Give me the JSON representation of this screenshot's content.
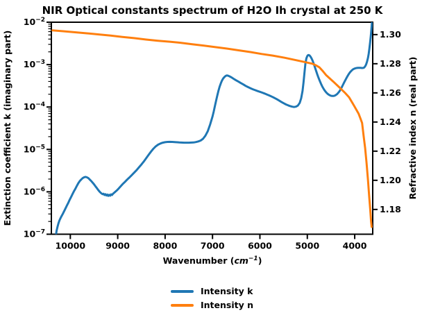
{
  "chart_data": {
    "type": "line",
    "title": "NIR Optical constants spectrum of H2O Ih crystal at 250 K",
    "xlabel": {
      "prefix": "Wavenumber (",
      "unit": "cm",
      "exponent": "−1",
      "suffix": ")"
    },
    "ylabel_left": "Extinction coefficient k (imaginary part)",
    "ylabel_right": "Refractive index n (real part)",
    "x_axis": {
      "lim": [
        10400,
        3620
      ],
      "reversed": true,
      "ticks": [
        10000,
        9000,
        8000,
        7000,
        6000,
        5000,
        4000
      ]
    },
    "y_axis_left": {
      "scale": "log",
      "lim": [
        1e-07,
        0.01
      ],
      "tick_exponents": [
        -2,
        -3,
        -4,
        -5,
        -6,
        -7
      ]
    },
    "y_axis_right": {
      "scale": "linear",
      "lim": [
        1.163,
        1.3085
      ],
      "ticks": [
        1.3,
        1.28,
        1.26,
        1.24,
        1.22,
        1.2,
        1.18
      ]
    },
    "grid": false,
    "legend": {
      "position": "below-center",
      "frame": false
    },
    "series": [
      {
        "name": "Intensity k",
        "axis": "left",
        "color": "#1f77b4",
        "points": [
          [
            10300,
            1e-07
          ],
          [
            10290,
            1.2e-07
          ],
          [
            10270,
            1.5e-07
          ],
          [
            10250,
            1.8e-07
          ],
          [
            10230,
            2.1e-07
          ],
          [
            10210,
            2.35e-07
          ],
          [
            10190,
            2.6e-07
          ],
          [
            10160,
            3e-07
          ],
          [
            10130,
            3.5e-07
          ],
          [
            10100,
            4.1e-07
          ],
          [
            10070,
            4.8e-07
          ],
          [
            10040,
            5.6e-07
          ],
          [
            10010,
            6.6e-07
          ],
          [
            9980,
            7.7e-07
          ],
          [
            9950,
            9e-07
          ],
          [
            9920,
            1.05e-06
          ],
          [
            9890,
            1.2e-06
          ],
          [
            9860,
            1.4e-06
          ],
          [
            9830,
            1.6e-06
          ],
          [
            9800,
            1.8e-06
          ],
          [
            9770,
            1.95e-06
          ],
          [
            9740,
            2.1e-06
          ],
          [
            9710,
            2.2e-06
          ],
          [
            9680,
            2.25e-06
          ],
          [
            9650,
            2.2e-06
          ],
          [
            9620,
            2.1e-06
          ],
          [
            9590,
            1.95e-06
          ],
          [
            9560,
            1.8e-06
          ],
          [
            9530,
            1.65e-06
          ],
          [
            9500,
            1.5e-06
          ],
          [
            9470,
            1.35e-06
          ],
          [
            9440,
            1.22e-06
          ],
          [
            9410,
            1.1e-06
          ],
          [
            9380,
            1e-06
          ],
          [
            9350,
            9.3e-07
          ],
          [
            9320,
            8.8e-07
          ],
          [
            9300,
            9e-07
          ],
          [
            9280,
            8.4e-07
          ],
          [
            9260,
            8.8e-07
          ],
          [
            9240,
            8.2e-07
          ],
          [
            9220,
            8.6e-07
          ],
          [
            9200,
            8e-07
          ],
          [
            9180,
            8.5e-07
          ],
          [
            9160,
            8.1e-07
          ],
          [
            9140,
            8.7e-07
          ],
          [
            9120,
            8.4e-07
          ],
          [
            9100,
            9e-07
          ],
          [
            9070,
            9.6e-07
          ],
          [
            9040,
            1.03e-06
          ],
          [
            9010,
            1.1e-06
          ],
          [
            8980,
            1.2e-06
          ],
          [
            8950,
            1.3e-06
          ],
          [
            8900,
            1.5e-06
          ],
          [
            8850,
            1.7e-06
          ],
          [
            8800,
            1.95e-06
          ],
          [
            8750,
            2.2e-06
          ],
          [
            8700,
            2.5e-06
          ],
          [
            8650,
            2.85e-06
          ],
          [
            8600,
            3.25e-06
          ],
          [
            8550,
            3.8e-06
          ],
          [
            8500,
            4.4e-06
          ],
          [
            8450,
            5.2e-06
          ],
          [
            8400,
            6.2e-06
          ],
          [
            8350,
            7.4e-06
          ],
          [
            8300,
            8.8e-06
          ],
          [
            8250,
            1.03e-05
          ],
          [
            8200,
            1.17e-05
          ],
          [
            8150,
            1.29e-05
          ],
          [
            8100,
            1.38e-05
          ],
          [
            8050,
            1.44e-05
          ],
          [
            8000,
            1.48e-05
          ],
          [
            7950,
            1.5e-05
          ],
          [
            7900,
            1.51e-05
          ],
          [
            7850,
            1.5e-05
          ],
          [
            7800,
            1.49e-05
          ],
          [
            7700,
            1.46e-05
          ],
          [
            7600,
            1.44e-05
          ],
          [
            7500,
            1.44e-05
          ],
          [
            7400,
            1.46e-05
          ],
          [
            7350,
            1.49e-05
          ],
          [
            7300,
            1.54e-05
          ],
          [
            7250,
            1.62e-05
          ],
          [
            7200,
            1.78e-05
          ],
          [
            7150,
            2.1e-05
          ],
          [
            7100,
            2.7e-05
          ],
          [
            7050,
            3.9e-05
          ],
          [
            7000,
            6e-05
          ],
          [
            6975,
            7.8e-05
          ],
          [
            6950,
            0.000105
          ],
          [
            6925,
            0.00014
          ],
          [
            6900,
            0.000185
          ],
          [
            6875,
            0.00024
          ],
          [
            6850,
            0.0003
          ],
          [
            6825,
            0.00036
          ],
          [
            6800,
            0.00042
          ],
          [
            6775,
            0.00047
          ],
          [
            6750,
            0.00051
          ],
          [
            6725,
            0.00054
          ],
          [
            6700,
            0.000555
          ],
          [
            6675,
            0.00055
          ],
          [
            6650,
            0.000535
          ],
          [
            6600,
            0.0005
          ],
          [
            6550,
            0.00046
          ],
          [
            6500,
            0.000425
          ],
          [
            6450,
            0.000395
          ],
          [
            6400,
            0.000365
          ],
          [
            6350,
            0.00034
          ],
          [
            6300,
            0.000315
          ],
          [
            6250,
            0.000295
          ],
          [
            6200,
            0.000278
          ],
          [
            6150,
            0.000262
          ],
          [
            6100,
            0.00025
          ],
          [
            6050,
            0.000238
          ],
          [
            6000,
            0.000228
          ],
          [
            5950,
            0.000218
          ],
          [
            5900,
            0.000208
          ],
          [
            5850,
            0.000197
          ],
          [
            5800,
            0.000187
          ],
          [
            5750,
            0.000176
          ],
          [
            5700,
            0.000165
          ],
          [
            5650,
            0.000154
          ],
          [
            5600,
            0.000143
          ],
          [
            5550,
            0.000132
          ],
          [
            5500,
            0.000123
          ],
          [
            5450,
            0.000115
          ],
          [
            5400,
            0.000109
          ],
          [
            5360,
            0.000105
          ],
          [
            5320,
            0.000102
          ],
          [
            5280,
            0.0001
          ],
          [
            5240,
            0.000102
          ],
          [
            5200,
            0.000108
          ],
          [
            5160,
            0.000125
          ],
          [
            5130,
            0.00016
          ],
          [
            5100,
            0.00024
          ],
          [
            5080,
            0.00038
          ],
          [
            5060,
            0.00065
          ],
          [
            5040,
            0.00105
          ],
          [
            5020,
            0.0014
          ],
          [
            5000,
            0.0016
          ],
          [
            4985,
            0.00167
          ],
          [
            4970,
            0.00168
          ],
          [
            4950,
            0.00163
          ],
          [
            4930,
            0.00153
          ],
          [
            4910,
            0.0014
          ],
          [
            4890,
            0.00125
          ],
          [
            4870,
            0.00109
          ],
          [
            4850,
            0.00094
          ],
          [
            4830,
            0.0008
          ],
          [
            4810,
            0.00069
          ],
          [
            4790,
            0.00059
          ],
          [
            4770,
            0.00051
          ],
          [
            4750,
            0.00045
          ],
          [
            4730,
            0.000395
          ],
          [
            4710,
            0.00035
          ],
          [
            4690,
            0.000315
          ],
          [
            4670,
            0.000285
          ],
          [
            4650,
            0.00026
          ],
          [
            4625,
            0.000238
          ],
          [
            4600,
            0.00022
          ],
          [
            4575,
            0.000206
          ],
          [
            4550,
            0.000196
          ],
          [
            4525,
            0.000189
          ],
          [
            4500,
            0.000184
          ],
          [
            4475,
            0.000182
          ],
          [
            4450,
            0.000182
          ],
          [
            4425,
            0.000185
          ],
          [
            4400,
            0.000191
          ],
          [
            4375,
            0.0002
          ],
          [
            4350,
            0.000214
          ],
          [
            4325,
            0.000233
          ],
          [
            4300,
            0.000258
          ],
          [
            4275,
            0.00029
          ],
          [
            4250,
            0.00033
          ],
          [
            4225,
            0.000375
          ],
          [
            4200,
            0.000425
          ],
          [
            4175,
            0.00048
          ],
          [
            4150,
            0.00054
          ],
          [
            4125,
            0.0006
          ],
          [
            4100,
            0.000655
          ],
          [
            4075,
            0.000705
          ],
          [
            4050,
            0.00075
          ],
          [
            4025,
            0.000785
          ],
          [
            4000,
            0.00081
          ],
          [
            3975,
            0.000825
          ],
          [
            3950,
            0.000835
          ],
          [
            3925,
            0.00084
          ],
          [
            3900,
            0.00084
          ],
          [
            3875,
            0.000837
          ],
          [
            3850,
            0.000832
          ],
          [
            3825,
            0.000835
          ],
          [
            3800,
            0.000855
          ],
          [
            3780,
            0.00091
          ],
          [
            3760,
            0.001
          ],
          [
            3740,
            0.00117
          ],
          [
            3720,
            0.00145
          ],
          [
            3705,
            0.0018
          ],
          [
            3690,
            0.0024
          ],
          [
            3675,
            0.0033
          ],
          [
            3662,
            0.0045
          ],
          [
            3652,
            0.006
          ],
          [
            3644,
            0.0078
          ],
          [
            3637,
            0.0095
          ],
          [
            3633,
            0.0105
          ]
        ]
      },
      {
        "name": "Intensity n",
        "axis": "right",
        "color": "#ff7f0e",
        "points": [
          [
            10375,
            1.3029
          ],
          [
            10150,
            1.3023
          ],
          [
            9900,
            1.3016
          ],
          [
            9650,
            1.3009
          ],
          [
            9400,
            1.3001
          ],
          [
            9150,
            1.2993
          ],
          [
            8900,
            1.2984
          ],
          [
            8658,
            1.2976
          ],
          [
            8400,
            1.2966
          ],
          [
            8150,
            1.2958
          ],
          [
            7900,
            1.2951
          ],
          [
            7677,
            1.2944
          ],
          [
            7430,
            1.2934
          ],
          [
            7180,
            1.2924
          ],
          [
            6940,
            1.2914
          ],
          [
            6696,
            1.2904
          ],
          [
            6450,
            1.2892
          ],
          [
            6200,
            1.288
          ],
          [
            5960,
            1.2867
          ],
          [
            5729,
            1.2856
          ],
          [
            5480,
            1.2841
          ],
          [
            5231,
            1.2824
          ],
          [
            5060,
            1.2812
          ],
          [
            4894,
            1.28
          ],
          [
            4820,
            1.2789
          ],
          [
            4748,
            1.2776
          ],
          [
            4675,
            1.275
          ],
          [
            4601,
            1.2721
          ],
          [
            4450,
            1.2677
          ],
          [
            4308,
            1.2633
          ],
          [
            4210,
            1.2602
          ],
          [
            4118,
            1.2569
          ],
          [
            4015,
            1.2513
          ],
          [
            3917,
            1.2457
          ],
          [
            3880,
            1.2426
          ],
          [
            3844,
            1.2393
          ],
          [
            3810,
            1.23
          ],
          [
            3780,
            1.222
          ],
          [
            3750,
            1.212
          ],
          [
            3720,
            1.2
          ],
          [
            3695,
            1.189
          ],
          [
            3672,
            1.18
          ],
          [
            3655,
            1.172
          ],
          [
            3642,
            1.168
          ]
        ]
      }
    ]
  }
}
